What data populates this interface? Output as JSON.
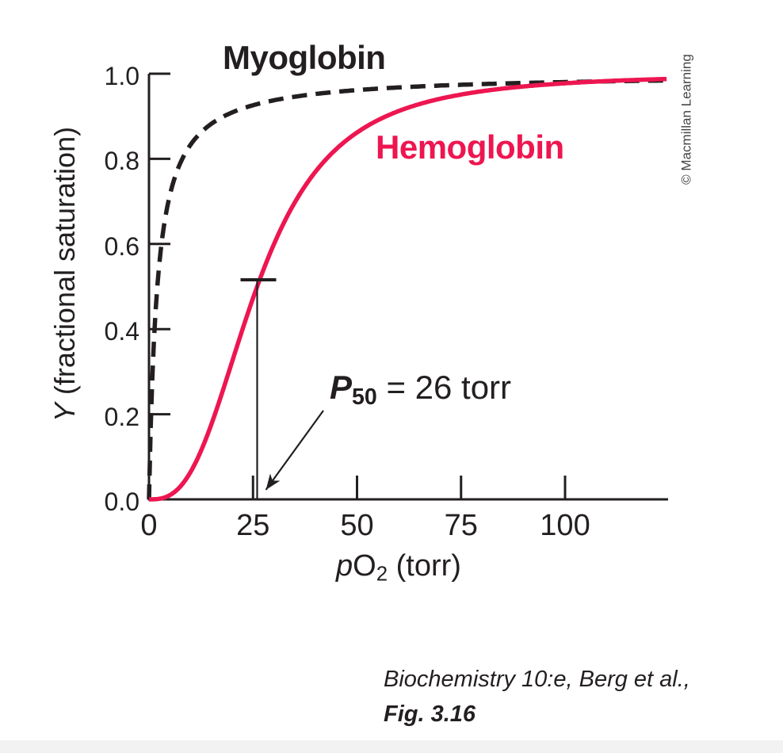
{
  "chart_data": {
    "type": "line",
    "title": "",
    "xlabel": "pO2 (torr)",
    "ylabel": "Y (fractional saturation)",
    "xlim": [
      0,
      124.8
    ],
    "ylim": [
      0,
      1.0
    ],
    "x_ticks": [
      0,
      25,
      50,
      75,
      100
    ],
    "y_ticks": [
      0.0,
      0.2,
      0.4,
      0.6,
      0.8,
      1.0
    ],
    "grid": false,
    "legend_position": "inline-labels",
    "x": [
      0,
      5,
      10,
      15,
      20,
      25,
      26,
      30,
      40,
      50,
      60,
      75,
      90,
      100,
      110,
      120,
      125
    ],
    "series": [
      {
        "name": "Myoglobin",
        "style": "dashed",
        "color": "#231f20",
        "model": "hyperbolic Y = pO2/(pO2 + P50)",
        "p50_torr": 2,
        "y": [
          0,
          0.714,
          0.833,
          0.882,
          0.909,
          0.926,
          0.929,
          0.938,
          0.952,
          0.962,
          0.968,
          0.974,
          0.978,
          0.98,
          0.982,
          0.984,
          0.984
        ]
      },
      {
        "name": "Hemoglobin",
        "style": "solid",
        "color": "#ed1650",
        "model": "Hill Y = pO2^n/(pO2^n + P50^n)",
        "p50_torr": 26,
        "hill_n": 2.8,
        "y": [
          0,
          0.01,
          0.064,
          0.177,
          0.324,
          0.473,
          0.5,
          0.599,
          0.77,
          0.862,
          0.911,
          0.951,
          0.97,
          0.978,
          0.983,
          0.986,
          0.987
        ]
      }
    ],
    "annotation": {
      "label": "P50 = 26 torr",
      "x_torr": 26,
      "y_fraction": 0.5
    }
  },
  "labels": {
    "myoglobin": "Myoglobin",
    "hemoglobin": "Hemoglobin",
    "p50_symbol": "P",
    "p50_subscript": "50",
    "p50_rest": " = 26 torr",
    "xaxis_prefix_italic": "p",
    "xaxis_main": "O",
    "xaxis_subscript": "2",
    "xaxis_suffix": " (torr)",
    "yaxis_symbol_italic": "Y",
    "yaxis_rest": " (fractional saturation)",
    "copyright": "© Macmillan Learning"
  },
  "axis": {
    "x_tick_labels": [
      "0",
      "25",
      "50",
      "75",
      "100"
    ],
    "y_tick_labels": [
      "0.0",
      "0.2",
      "0.4",
      "0.6",
      "0.8",
      "1.0"
    ]
  },
  "caption": {
    "line1": "Biochemistry 10:e, Berg et al.,",
    "line2": "Fig. 3.16"
  },
  "colors": {
    "ink": "#231f20",
    "hemoglobin_red": "#ed1650",
    "copyright_gray": "#454545",
    "bottom_strip": "#f2f2f2"
  }
}
